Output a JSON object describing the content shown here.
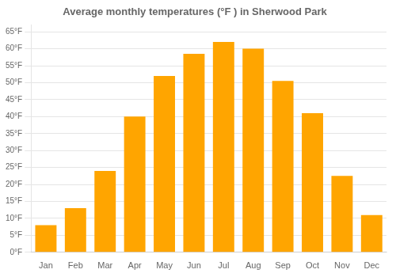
{
  "chart_data": {
    "type": "bar",
    "title": "Average monthly temperatures (°F ) in Sherwood Park",
    "categories": [
      "Jan",
      "Feb",
      "Mar",
      "Apr",
      "May",
      "Jun",
      "Jul",
      "Aug",
      "Sep",
      "Oct",
      "Nov",
      "Dec"
    ],
    "values": [
      8,
      13,
      24,
      40,
      52,
      58.5,
      62,
      60,
      50.5,
      41,
      22.5,
      11
    ],
    "color": "#FFA500",
    "ylim": [
      0,
      67
    ],
    "yticks": [
      {
        "value": 0,
        "label": "0°F"
      },
      {
        "value": 5,
        "label": "5°F"
      },
      {
        "value": 10,
        "label": "10°F"
      },
      {
        "value": 15,
        "label": "15°F"
      },
      {
        "value": 20,
        "label": "20°F"
      },
      {
        "value": 25,
        "label": "25°F"
      },
      {
        "value": 30,
        "label": "30°F"
      },
      {
        "value": 35,
        "label": "35°F"
      },
      {
        "value": 40,
        "label": "40°F"
      },
      {
        "value": 45,
        "label": "45°F"
      },
      {
        "value": 50,
        "label": "50°F"
      },
      {
        "value": 55,
        "label": "55°F"
      },
      {
        "value": 60,
        "label": "60°F"
      },
      {
        "value": 65,
        "label": "65°F"
      }
    ],
    "grid": true
  }
}
